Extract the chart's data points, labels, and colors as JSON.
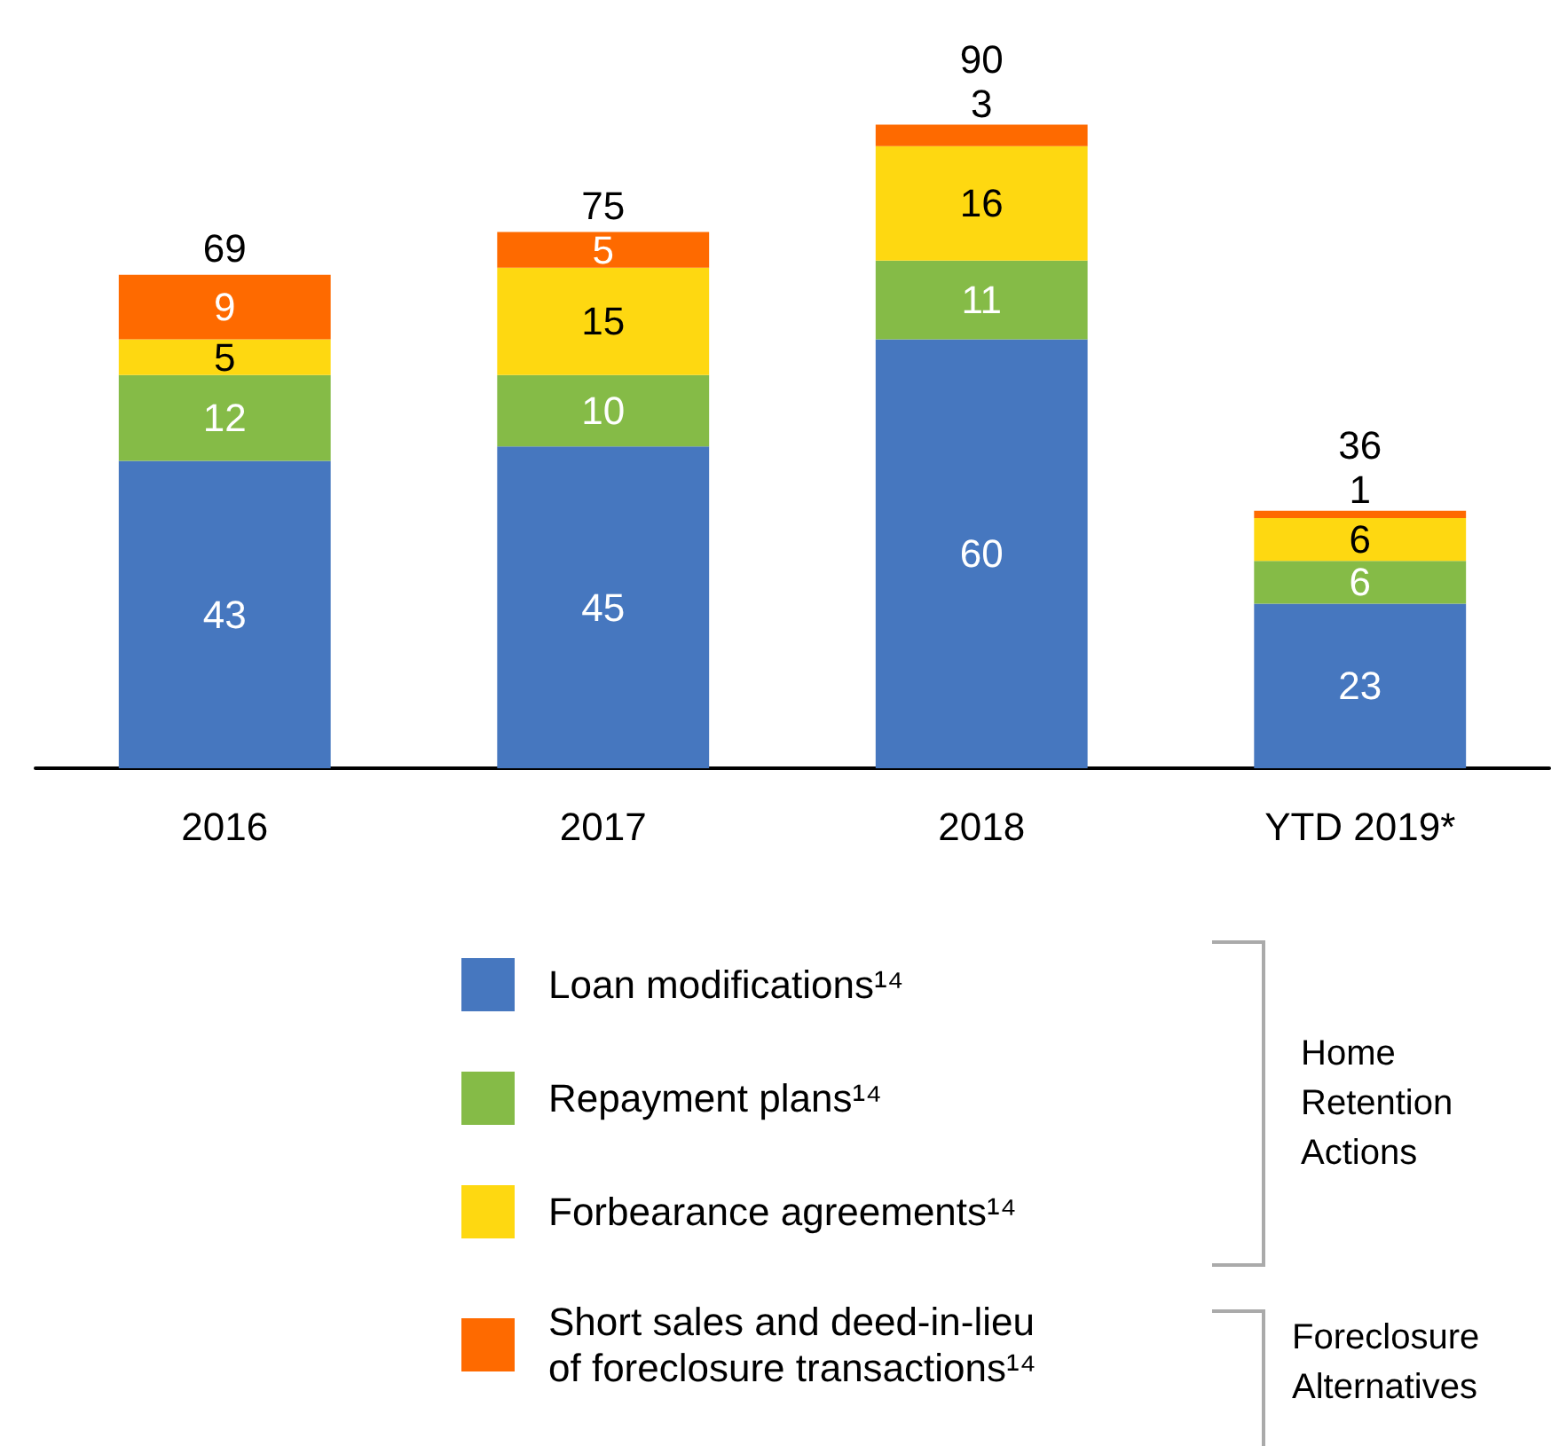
{
  "chart_data": {
    "type": "bar",
    "stacked": true,
    "data_labels": true,
    "legend": "bottom",
    "categories": [
      "2016",
      "2017",
      "2018",
      "YTD 2019*"
    ],
    "series": [
      {
        "name": "Loan modifications¹⁴",
        "color": "#4677bf",
        "values": [
          43,
          45,
          60,
          23
        ]
      },
      {
        "name": "Repayment plans¹⁴",
        "color": "#85bb47",
        "values": [
          12,
          10,
          11,
          6
        ]
      },
      {
        "name": "Forbearance agreements¹⁴",
        "color": "#fed811",
        "values": [
          5,
          15,
          16,
          6
        ]
      },
      {
        "name": "Short sales and deed-in-lieu of foreclosure transactions¹⁴",
        "color": "#fe6a00",
        "values": [
          9,
          5,
          3,
          1
        ]
      }
    ],
    "totals": [
      "69",
      "75",
      "90",
      "36"
    ],
    "annotations": [
      "Home Retention Actions",
      "Foreclosure Alternatives"
    ]
  }
}
